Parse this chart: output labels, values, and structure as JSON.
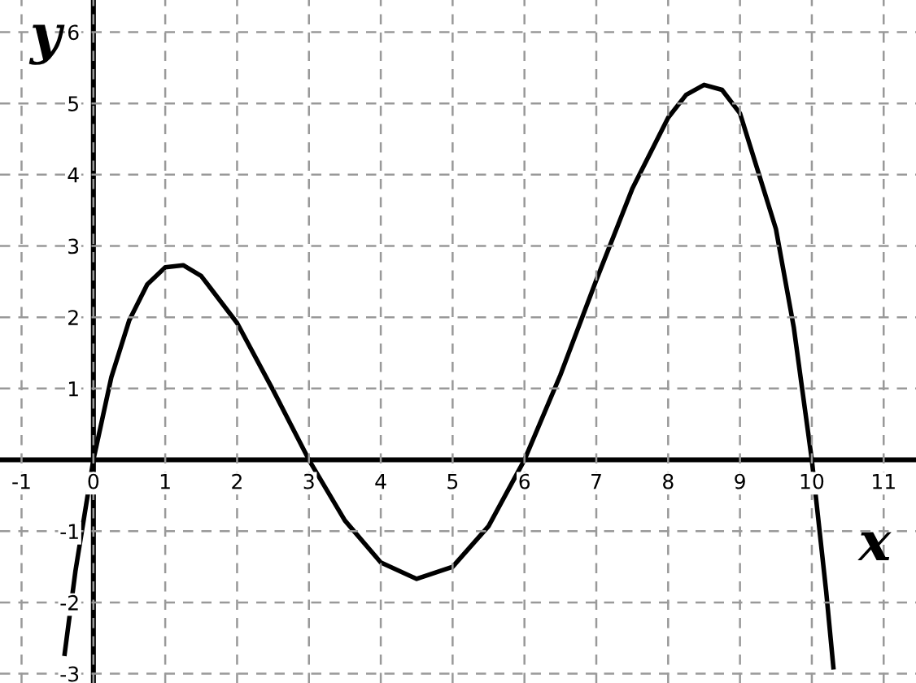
{
  "chart_data": {
    "type": "line",
    "xlabel": "x",
    "ylabel": "y",
    "x": [
      -0.4,
      -0.25,
      0,
      0.25,
      0.5,
      0.75,
      1,
      1.25,
      1.5,
      2,
      2.5,
      3,
      3.5,
      4,
      4.5,
      5,
      5.5,
      6,
      6.5,
      7,
      7.5,
      8,
      8.25,
      8.5,
      8.75,
      9,
      9.5,
      9.75,
      10,
      10.2,
      10.3
    ],
    "series": [
      {
        "color": "#000000",
        "values": [
          -2.72,
          -1.56,
          0,
          1.16,
          1.96,
          2.46,
          2.7,
          2.73,
          2.58,
          1.92,
          0.98,
          0,
          -0.85,
          -1.44,
          -1.67,
          -1.5,
          -0.93,
          0,
          1.19,
          2.52,
          3.8,
          4.8,
          5.12,
          5.26,
          5.19,
          4.86,
          3.24,
          1.85,
          0,
          -1.85,
          -2.91
        ]
      }
    ],
    "xlim": [
      -1.3,
      11.45
    ],
    "ylim": [
      -3.13,
      6.45
    ],
    "xticks": [
      -1,
      0,
      1,
      2,
      3,
      4,
      5,
      6,
      7,
      8,
      9,
      10,
      11
    ],
    "yticks": [
      -3,
      -2,
      -1,
      1,
      2,
      3,
      4,
      5,
      6
    ],
    "grid": true,
    "legend": false,
    "marker": "none",
    "line_style": "solid"
  }
}
